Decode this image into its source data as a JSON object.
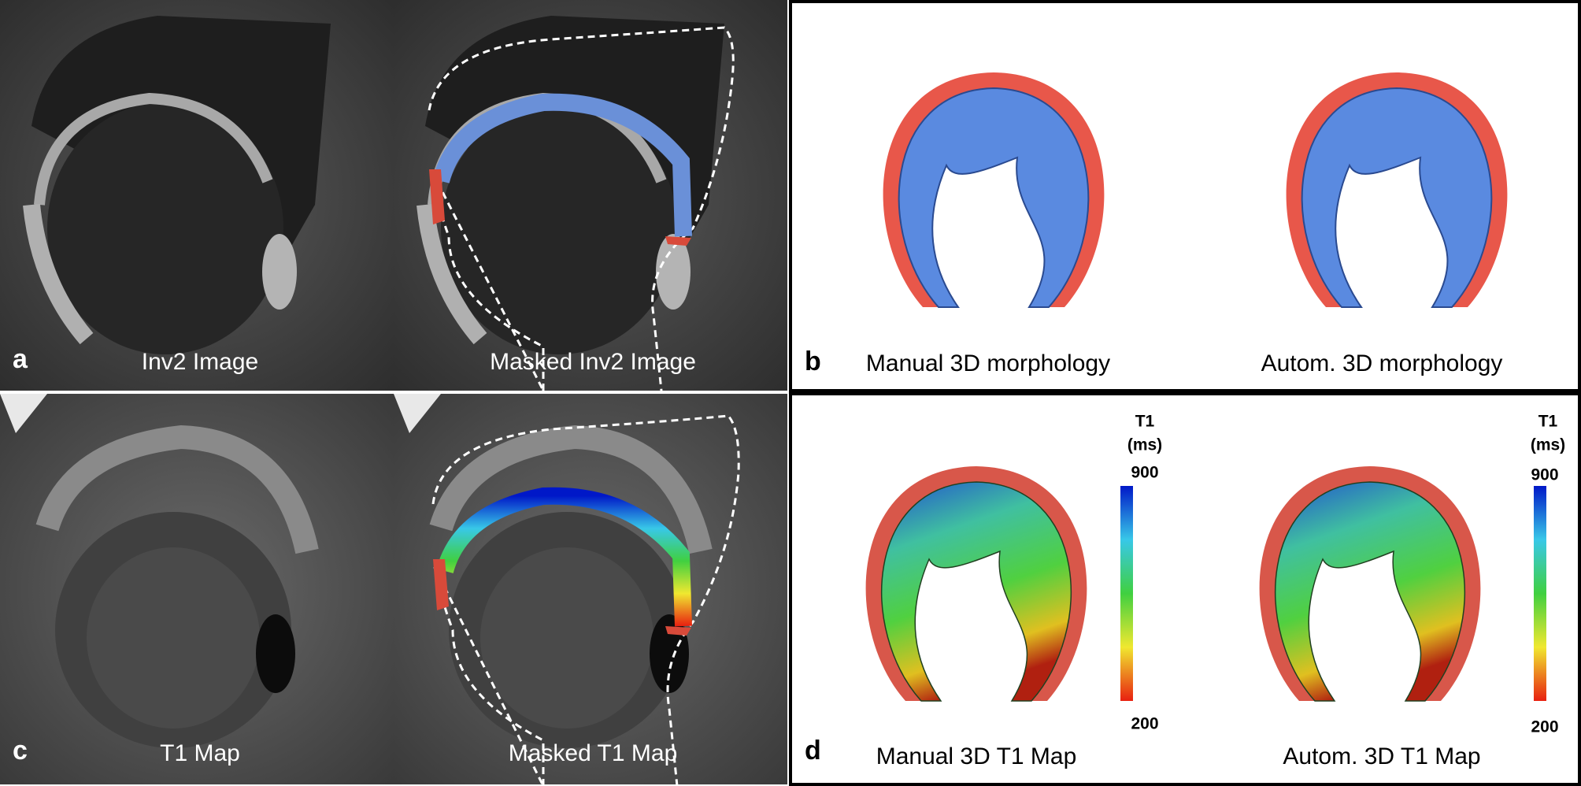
{
  "panels": [
    {
      "letter": "a",
      "captions": [
        "Inv2 Image",
        "Masked Inv2 Image"
      ]
    },
    {
      "letter": "b",
      "captions": [
        "Manual 3D morphology",
        "Autom. 3D morphology"
      ]
    },
    {
      "letter": "c",
      "captions": [
        "T1 Map",
        "Masked T1 Map"
      ]
    },
    {
      "letter": "d",
      "captions": [
        "Manual 3D T1 Map",
        "Autom. 3D T1 Map"
      ],
      "colorbars": [
        {
          "title": "T1",
          "unit": "(ms)",
          "max": "900",
          "min": "200"
        },
        {
          "title": "T1",
          "unit": "(ms)",
          "max": "900",
          "min": "200"
        }
      ]
    }
  ]
}
